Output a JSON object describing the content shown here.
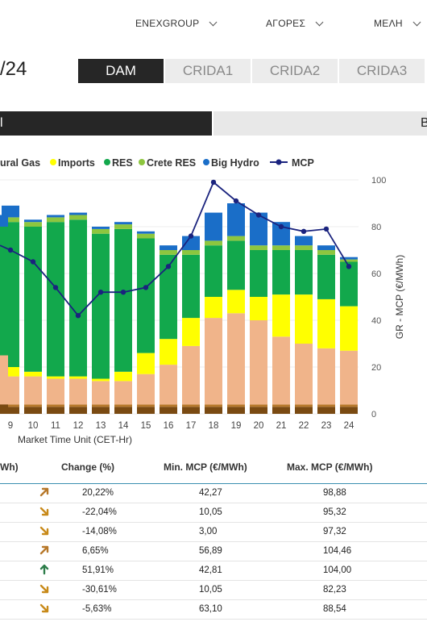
{
  "nav": {
    "items": [
      {
        "label": "ENEXGROUP"
      },
      {
        "label": "ΑΓΟΡΕΣ"
      },
      {
        "label": "ΜΕΛΗ"
      }
    ]
  },
  "page": {
    "date_fragment": "/24"
  },
  "tabs": [
    {
      "label": "DAM",
      "active": true
    },
    {
      "label": "CRIDA1"
    },
    {
      "label": "CRIDA2"
    },
    {
      "label": "CRIDA3"
    }
  ],
  "segment": {
    "left_label": "l",
    "right_label": "B"
  },
  "colors": {
    "gas_dark": "#7a4a12",
    "gas": "#b7782a",
    "natural_gas": "#f0b48a",
    "imports": "#ffff00",
    "res": "#12a84c",
    "crete_res": "#8dc63f",
    "big_hydro": "#1a6ec8",
    "mcp": "#1a237e"
  },
  "chart_data": {
    "type": "bar",
    "xlabel": "Market Time Unit (CET-Hr)",
    "ylabel": "GR - MCP (€/MWh)",
    "ylim": [
      0,
      100
    ],
    "y_ticks": [
      "0",
      "20",
      "40",
      "60",
      "80",
      "100"
    ],
    "legend": [
      "ural Gas",
      "Imports",
      "RES",
      "Crete RES",
      "Big Hydro",
      "MCP"
    ],
    "categories": [
      "9",
      "10",
      "11",
      "12",
      "13",
      "14",
      "15",
      "16",
      "17",
      "18",
      "19",
      "20",
      "21",
      "22",
      "23",
      "24"
    ],
    "series": [
      {
        "name": "ural Gas",
        "values": [
          12,
          12,
          11,
          11,
          10,
          10,
          13,
          17,
          25,
          37,
          39,
          36,
          29,
          26,
          24,
          23
        ]
      },
      {
        "name": "Imports",
        "values": [
          4,
          2,
          1,
          1,
          1,
          4,
          9,
          11,
          12,
          9,
          10,
          10,
          18,
          21,
          21,
          19
        ]
      },
      {
        "name": "RES",
        "values": [
          62,
          62,
          66,
          67,
          62,
          61,
          49,
          36,
          27,
          22,
          21,
          20,
          19,
          19,
          19,
          19
        ]
      },
      {
        "name": "Crete RES",
        "values": [
          2,
          2,
          2,
          2,
          2,
          2,
          2,
          2,
          2,
          2,
          2,
          2,
          2,
          2,
          2,
          1
        ]
      },
      {
        "name": "Big Hydro",
        "values": [
          5,
          1,
          1,
          1,
          1,
          1,
          1,
          2,
          6,
          12,
          14,
          14,
          10,
          4,
          2,
          1
        ]
      },
      {
        "name": "MCP",
        "values": [
          70,
          65,
          54,
          42,
          52,
          52,
          54,
          63,
          76,
          99,
          91,
          85,
          80,
          78,
          79,
          63
        ]
      }
    ]
  },
  "table": {
    "headers": [
      "Wh)",
      "Change (%)",
      "Min. MCP (€/MWh)",
      "Max. MCP (€/MWh)"
    ],
    "rows": [
      {
        "dir": "up-right",
        "change": "20,22%",
        "min": "42,27",
        "max": "98,88"
      },
      {
        "dir": "down-right",
        "change": "-22,04%",
        "min": "10,05",
        "max": "95,32"
      },
      {
        "dir": "down-right",
        "change": "-14,08%",
        "min": "3,00",
        "max": "97,32"
      },
      {
        "dir": "up-right",
        "change": "6,65%",
        "min": "56,89",
        "max": "104,46"
      },
      {
        "dir": "up",
        "change": "51,91%",
        "min": "42,81",
        "max": "104,00"
      },
      {
        "dir": "down-right",
        "change": "-30,61%",
        "min": "10,05",
        "max": "82,23"
      },
      {
        "dir": "down-right",
        "change": "-5,63%",
        "min": "63,10",
        "max": "88,54"
      }
    ]
  }
}
